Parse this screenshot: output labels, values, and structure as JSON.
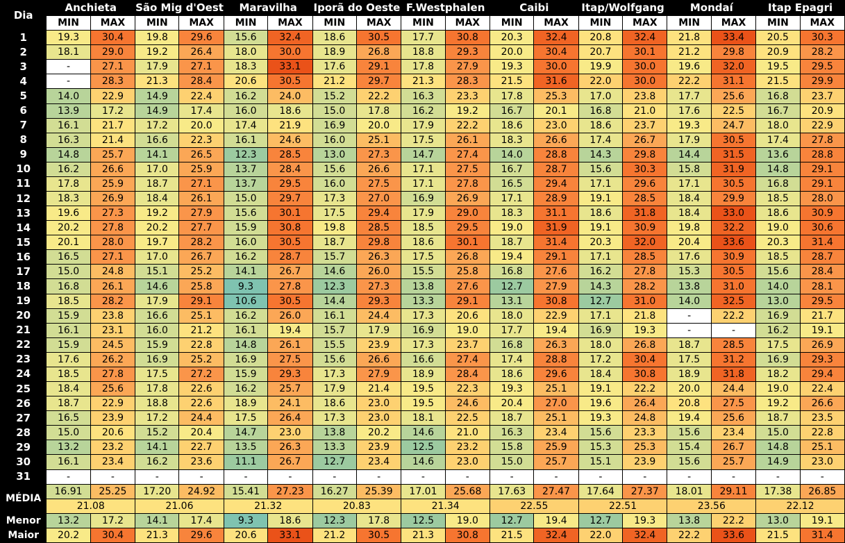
{
  "header": {
    "day_label": "Dia",
    "min_label": "MIN",
    "max_label": "MAX",
    "media_label": "MÉDIA",
    "menor_label": "Menor",
    "maior_label": "Maior",
    "dash": "-"
  },
  "stations": [
    "Anchieta",
    "São Mig d'Oeste",
    "Maravilha",
    "Iporã do Oeste",
    "F.Westphalen",
    "Caibi",
    "Itap/Wolfgang",
    "Mondaí",
    "Itap Epagri"
  ],
  "days": [
    {
      "day": "1",
      "min": [
        "19.3",
        "19.8",
        "15.6",
        "18.6",
        "17.7",
        "20.3",
        "20.8",
        "21.8",
        "20.5"
      ],
      "max": [
        "30.4",
        "29.6",
        "32.4",
        "30.5",
        "30.8",
        "32.4",
        "32.4",
        "33.4",
        "30.3"
      ]
    },
    {
      "day": "2",
      "min": [
        "18.1",
        "19.2",
        "18.0",
        "18.9",
        "18.8",
        "20.0",
        "20.7",
        "21.2",
        "20.9"
      ],
      "max": [
        "29.0",
        "26.4",
        "30.0",
        "26.8",
        "29.3",
        "30.4",
        "30.1",
        "29.8",
        "28.2"
      ]
    },
    {
      "day": "3",
      "min": [
        "-",
        "17.9",
        "18.3",
        "17.6",
        "17.8",
        "19.3",
        "19.9",
        "19.6",
        "19.5"
      ],
      "max": [
        "27.1",
        "27.1",
        "33.1",
        "29.1",
        "27.9",
        "30.0",
        "30.0",
        "32.0",
        "29.5"
      ]
    },
    {
      "day": "4",
      "min": [
        "-",
        "21.3",
        "20.6",
        "21.2",
        "21.3",
        "21.5",
        "22.0",
        "22.2",
        "21.5"
      ],
      "max": [
        "28.3",
        "28.4",
        "30.5",
        "29.7",
        "28.3",
        "31.6",
        "30.0",
        "31.1",
        "29.9"
      ]
    },
    {
      "day": "5",
      "min": [
        "14.0",
        "14.9",
        "16.2",
        "15.2",
        "16.3",
        "17.8",
        "17.0",
        "17.7",
        "16.8"
      ],
      "max": [
        "22.9",
        "22.4",
        "24.0",
        "22.2",
        "23.3",
        "25.3",
        "23.8",
        "25.6",
        "23.7"
      ]
    },
    {
      "day": "6",
      "min": [
        "13.9",
        "14.9",
        "16.0",
        "15.0",
        "16.2",
        "16.7",
        "16.8",
        "17.6",
        "16.7"
      ],
      "max": [
        "17.2",
        "17.4",
        "18.6",
        "17.8",
        "19.2",
        "20.1",
        "21.0",
        "22.5",
        "20.9"
      ]
    },
    {
      "day": "7",
      "min": [
        "16.1",
        "17.2",
        "17.4",
        "16.9",
        "17.9",
        "18.6",
        "18.6",
        "19.3",
        "18.0"
      ],
      "max": [
        "21.7",
        "20.0",
        "21.9",
        "20.0",
        "22.2",
        "23.0",
        "23.7",
        "24.7",
        "22.9"
      ]
    },
    {
      "day": "8",
      "min": [
        "16.3",
        "16.6",
        "16.1",
        "16.0",
        "17.5",
        "18.3",
        "17.4",
        "17.9",
        "17.4"
      ],
      "max": [
        "21.4",
        "22.3",
        "24.6",
        "25.1",
        "26.1",
        "26.6",
        "26.7",
        "30.5",
        "27.8"
      ]
    },
    {
      "day": "9",
      "min": [
        "14.8",
        "14.1",
        "12.3",
        "13.0",
        "14.7",
        "14.0",
        "14.3",
        "14.4",
        "13.6"
      ],
      "max": [
        "25.7",
        "26.5",
        "28.5",
        "27.3",
        "27.4",
        "28.8",
        "29.8",
        "31.5",
        "28.8"
      ]
    },
    {
      "day": "10",
      "min": [
        "16.2",
        "17.0",
        "13.7",
        "15.6",
        "17.1",
        "16.7",
        "15.6",
        "15.8",
        "14.8"
      ],
      "max": [
        "26.6",
        "25.9",
        "28.4",
        "26.6",
        "27.5",
        "28.7",
        "30.3",
        "31.9",
        "29.1"
      ]
    },
    {
      "day": "11",
      "min": [
        "17.8",
        "18.7",
        "13.7",
        "16.0",
        "17.1",
        "16.5",
        "17.1",
        "17.1",
        "16.8"
      ],
      "max": [
        "25.9",
        "27.1",
        "29.5",
        "27.5",
        "27.8",
        "29.4",
        "29.6",
        "30.5",
        "29.1"
      ]
    },
    {
      "day": "12",
      "min": [
        "18.3",
        "18.4",
        "15.0",
        "17.3",
        "16.9",
        "17.1",
        "19.1",
        "18.4",
        "18.5"
      ],
      "max": [
        "26.9",
        "26.1",
        "29.7",
        "27.0",
        "26.9",
        "28.9",
        "28.5",
        "29.9",
        "28.0"
      ]
    },
    {
      "day": "13",
      "min": [
        "19.6",
        "19.2",
        "15.6",
        "17.5",
        "17.9",
        "18.3",
        "18.6",
        "18.4",
        "18.6"
      ],
      "max": [
        "27.3",
        "27.9",
        "30.1",
        "29.4",
        "29.0",
        "31.1",
        "31.8",
        "33.0",
        "30.9"
      ]
    },
    {
      "day": "14",
      "min": [
        "20.2",
        "20.2",
        "15.9",
        "19.8",
        "18.5",
        "19.0",
        "19.1",
        "19.8",
        "19.0"
      ],
      "max": [
        "27.8",
        "27.7",
        "30.8",
        "28.5",
        "29.5",
        "31.9",
        "30.9",
        "32.2",
        "30.6"
      ]
    },
    {
      "day": "15",
      "min": [
        "20.1",
        "19.7",
        "16.0",
        "18.7",
        "18.6",
        "18.7",
        "20.3",
        "20.4",
        "20.3"
      ],
      "max": [
        "28.0",
        "28.2",
        "30.5",
        "29.8",
        "30.1",
        "31.4",
        "32.0",
        "33.6",
        "31.4"
      ]
    },
    {
      "day": "16",
      "min": [
        "16.5",
        "17.0",
        "16.2",
        "15.7",
        "17.5",
        "19.4",
        "17.1",
        "17.6",
        "18.5"
      ],
      "max": [
        "27.1",
        "26.7",
        "28.7",
        "26.3",
        "26.8",
        "29.1",
        "28.5",
        "30.9",
        "28.7"
      ]
    },
    {
      "day": "17",
      "min": [
        "15.0",
        "15.1",
        "14.1",
        "14.6",
        "15.5",
        "16.8",
        "16.2",
        "15.3",
        "15.6"
      ],
      "max": [
        "24.8",
        "25.2",
        "26.7",
        "26.0",
        "25.8",
        "27.6",
        "27.8",
        "30.5",
        "28.4"
      ]
    },
    {
      "day": "18",
      "min": [
        "16.8",
        "14.6",
        "9.3",
        "12.3",
        "13.8",
        "12.7",
        "14.3",
        "13.8",
        "14.0"
      ],
      "max": [
        "26.1",
        "25.8",
        "27.8",
        "27.3",
        "27.6",
        "27.9",
        "28.2",
        "31.0",
        "28.1"
      ]
    },
    {
      "day": "19",
      "min": [
        "18.5",
        "17.9",
        "10.6",
        "14.4",
        "13.3",
        "13.1",
        "12.7",
        "14.0",
        "13.0"
      ],
      "max": [
        "28.2",
        "29.1",
        "30.5",
        "29.3",
        "29.1",
        "30.8",
        "31.0",
        "32.5",
        "29.5"
      ]
    },
    {
      "day": "20",
      "min": [
        "15.9",
        "16.6",
        "16.2",
        "16.1",
        "17.3",
        "18.0",
        "17.1",
        "-",
        "16.9"
      ],
      "max": [
        "23.8",
        "25.1",
        "26.0",
        "24.4",
        "20.6",
        "22.9",
        "21.8",
        "22.2",
        "21.7"
      ]
    },
    {
      "day": "21",
      "min": [
        "16.1",
        "16.0",
        "16.1",
        "15.7",
        "16.9",
        "17.7",
        "16.9",
        "-",
        "16.2"
      ],
      "max": [
        "23.1",
        "21.2",
        "19.4",
        "17.9",
        "19.0",
        "19.4",
        "19.3",
        "-",
        "19.1"
      ]
    },
    {
      "day": "22",
      "min": [
        "15.9",
        "15.9",
        "14.8",
        "15.5",
        "17.3",
        "16.8",
        "18.0",
        "18.7",
        "17.5"
      ],
      "max": [
        "24.5",
        "22.8",
        "26.1",
        "23.9",
        "23.7",
        "26.3",
        "26.8",
        "28.5",
        "26.9"
      ]
    },
    {
      "day": "23",
      "min": [
        "17.6",
        "16.9",
        "16.9",
        "15.6",
        "16.6",
        "17.4",
        "17.2",
        "17.5",
        "16.9"
      ],
      "max": [
        "26.2",
        "25.2",
        "27.5",
        "26.6",
        "27.4",
        "28.8",
        "30.4",
        "31.2",
        "29.3"
      ]
    },
    {
      "day": "24",
      "min": [
        "18.5",
        "17.5",
        "15.9",
        "17.3",
        "18.9",
        "18.6",
        "18.4",
        "18.9",
        "18.2"
      ],
      "max": [
        "27.8",
        "27.2",
        "29.3",
        "27.9",
        "28.4",
        "29.6",
        "30.8",
        "31.8",
        "29.4"
      ]
    },
    {
      "day": "25",
      "min": [
        "18.4",
        "17.8",
        "16.2",
        "17.9",
        "19.5",
        "19.3",
        "19.1",
        "20.0",
        "19.0"
      ],
      "max": [
        "25.6",
        "22.6",
        "25.7",
        "21.4",
        "22.3",
        "25.1",
        "22.2",
        "24.4",
        "22.4"
      ]
    },
    {
      "day": "26",
      "min": [
        "18.7",
        "18.8",
        "18.9",
        "18.6",
        "19.5",
        "20.4",
        "19.6",
        "20.8",
        "19.2"
      ],
      "max": [
        "22.9",
        "22.6",
        "24.1",
        "23.0",
        "24.6",
        "27.0",
        "26.4",
        "27.5",
        "26.6"
      ]
    },
    {
      "day": "27",
      "min": [
        "16.5",
        "17.2",
        "17.5",
        "17.3",
        "18.1",
        "18.7",
        "19.3",
        "19.4",
        "18.7"
      ],
      "max": [
        "23.9",
        "24.4",
        "26.4",
        "23.0",
        "22.5",
        "25.1",
        "24.8",
        "25.6",
        "23.5"
      ]
    },
    {
      "day": "28",
      "min": [
        "15.0",
        "15.2",
        "14.7",
        "13.8",
        "14.6",
        "16.3",
        "15.6",
        "15.6",
        "15.0"
      ],
      "max": [
        "20.6",
        "20.4",
        "23.0",
        "20.2",
        "21.0",
        "23.4",
        "23.3",
        "23.4",
        "22.8"
      ]
    },
    {
      "day": "29",
      "min": [
        "13.2",
        "14.1",
        "13.5",
        "13.3",
        "12.5",
        "15.8",
        "15.3",
        "15.4",
        "14.8"
      ],
      "max": [
        "23.2",
        "22.7",
        "26.3",
        "23.9",
        "23.2",
        "25.9",
        "25.3",
        "26.7",
        "25.1"
      ]
    },
    {
      "day": "30",
      "min": [
        "16.1",
        "16.2",
        "11.1",
        "12.7",
        "14.6",
        "15.0",
        "15.1",
        "15.6",
        "14.9"
      ],
      "max": [
        "23.4",
        "23.6",
        "26.7",
        "23.4",
        "23.0",
        "25.7",
        "23.9",
        "25.7",
        "23.0"
      ]
    },
    {
      "day": "31",
      "min": [
        "-",
        "-",
        "-",
        "-",
        "-",
        "-",
        "-",
        "-",
        "-"
      ],
      "max": [
        "-",
        "-",
        "-",
        "-",
        "-",
        "-",
        "-",
        "-",
        "-"
      ]
    }
  ],
  "media_min": [
    "16.91",
    "17.20",
    "15.41",
    "16.27",
    "17.01",
    "17.63",
    "17.64",
    "18.01",
    "17.38"
  ],
  "media_max": [
    "25.25",
    "24.92",
    "27.23",
    "25.39",
    "25.68",
    "27.47",
    "27.37",
    "29.11",
    "26.85"
  ],
  "media_total": [
    "21.08",
    "21.06",
    "21.32",
    "20.83",
    "21.34",
    "22.55",
    "22.51",
    "23.56",
    "22.12"
  ],
  "menor_min": [
    "13.2",
    "14.1",
    "9.3",
    "12.3",
    "12.5",
    "12.7",
    "12.7",
    "13.8",
    "13.0"
  ],
  "menor_max": [
    "17.2",
    "17.4",
    "18.6",
    "17.8",
    "19.0",
    "19.4",
    "19.3",
    "22.2",
    "19.1"
  ],
  "maior_min": [
    "20.2",
    "21.3",
    "20.6",
    "21.2",
    "21.3",
    "21.5",
    "22.0",
    "22.2",
    "21.5"
  ],
  "maior_max": [
    "30.4",
    "29.6",
    "33.1",
    "30.5",
    "30.8",
    "32.4",
    "32.4",
    "33.6",
    "31.4"
  ]
}
